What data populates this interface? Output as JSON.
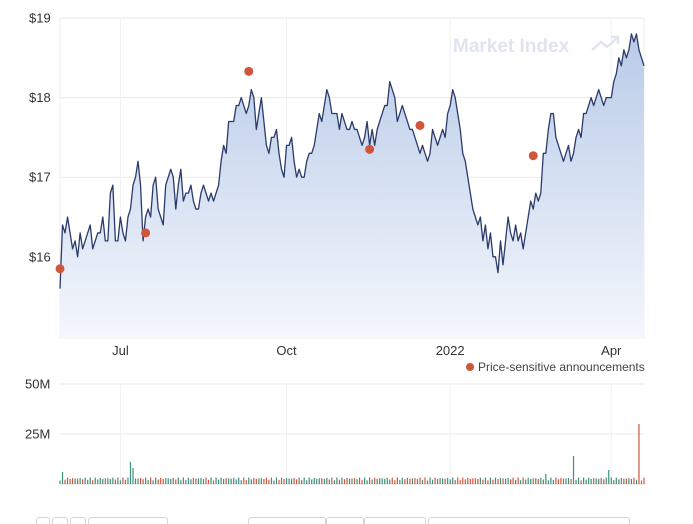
{
  "watermark": {
    "text": "Market Index",
    "icon": "trend-up-icon"
  },
  "legend": {
    "label": "Price-sensitive announcements",
    "marker_color": "#d0563b"
  },
  "colors": {
    "line": "#2b3a6b",
    "area_top": "#b9cbe8",
    "area_bottom": "#f4f7fc",
    "grid": "#e9e9e9",
    "volume_up": "#3d8f7d",
    "volume_down": "#d0563b"
  },
  "chart_data": [
    {
      "type": "area",
      "name": "price",
      "y_ticks": [
        16,
        17,
        18,
        19
      ],
      "y_tick_labels": [
        "$16",
        "$17",
        "$18",
        "$19"
      ],
      "ylim": [
        14.98,
        19.0
      ],
      "x_ticks": [
        "Jul",
        "Oct",
        "2022",
        "Apr"
      ],
      "x_tick_index": [
        24,
        90,
        155,
        219
      ],
      "grid": true,
      "values": [
        15.6,
        16.4,
        16.3,
        16.5,
        16.3,
        16.1,
        16.2,
        16.0,
        16.3,
        16.1,
        16.2,
        16.3,
        16.4,
        16.1,
        16.2,
        16.3,
        16.3,
        16.5,
        16.2,
        16.2,
        16.8,
        16.9,
        16.2,
        16.2,
        16.5,
        16.3,
        16.2,
        16.5,
        16.6,
        16.9,
        17.0,
        17.2,
        16.9,
        16.2,
        16.5,
        16.6,
        16.5,
        16.9,
        17.0,
        16.6,
        16.5,
        16.4,
        16.9,
        17.0,
        17.1,
        17.0,
        16.6,
        16.9,
        17.1,
        16.7,
        16.8,
        16.8,
        16.9,
        16.7,
        16.6,
        16.6,
        16.8,
        16.9,
        16.8,
        16.7,
        16.8,
        16.7,
        16.8,
        16.9,
        17.2,
        17.4,
        17.3,
        17.7,
        17.7,
        17.7,
        17.9,
        17.9,
        18.0,
        17.9,
        17.8,
        17.9,
        18.1,
        18.0,
        17.6,
        17.8,
        18.0,
        17.7,
        17.4,
        17.3,
        17.5,
        17.5,
        17.6,
        17.3,
        17.1,
        17.0,
        17.4,
        17.4,
        17.5,
        17.2,
        17.0,
        17.1,
        17.0,
        17.0,
        17.2,
        17.3,
        17.3,
        17.4,
        17.6,
        17.8,
        17.7,
        17.9,
        18.1,
        18.0,
        17.8,
        17.8,
        17.8,
        17.6,
        17.8,
        17.7,
        17.6,
        17.6,
        17.7,
        17.6,
        17.6,
        17.5,
        17.4,
        17.5,
        17.7,
        17.4,
        17.6,
        17.4,
        17.6,
        17.7,
        17.8,
        17.9,
        17.9,
        18.2,
        18.1,
        18.0,
        17.7,
        17.8,
        17.9,
        17.8,
        17.7,
        17.6,
        17.6,
        17.5,
        17.4,
        17.3,
        17.4,
        17.3,
        17.2,
        17.3,
        17.6,
        17.5,
        17.4,
        17.5,
        17.6,
        17.5,
        17.8,
        17.9,
        18.1,
        18.0,
        17.8,
        17.6,
        17.3,
        17.2,
        17.0,
        16.8,
        16.6,
        16.5,
        16.4,
        16.5,
        16.2,
        16.4,
        16.1,
        16.3,
        16.0,
        16.0,
        15.8,
        16.2,
        15.9,
        16.2,
        16.5,
        16.3,
        16.2,
        16.4,
        16.2,
        16.3,
        16.1,
        16.3,
        16.5,
        16.7,
        16.6,
        16.8,
        16.7,
        16.8,
        17.3,
        17.3,
        17.6,
        17.8,
        17.8,
        17.5,
        17.4,
        17.3,
        17.2,
        17.3,
        17.4,
        17.2,
        17.3,
        17.5,
        17.6,
        17.5,
        17.8,
        17.8,
        17.9,
        18.0,
        17.9,
        18.0,
        18.1,
        18.0,
        17.9,
        18.0,
        18.0,
        18.0,
        18.2,
        18.3,
        18.5,
        18.4,
        18.6,
        18.5,
        18.6,
        18.8,
        18.7,
        18.8,
        18.6,
        18.5,
        18.4
      ]
    },
    {
      "type": "bar",
      "name": "volume",
      "y_ticks": [
        25,
        50
      ],
      "y_tick_labels": [
        "25M",
        "50M"
      ],
      "ylim": [
        0,
        50
      ],
      "grid": true,
      "spikes": [
        {
          "index": 1,
          "value": 6
        },
        {
          "index": 28,
          "value": 11
        },
        {
          "index": 29,
          "value": 8
        },
        {
          "index": 193,
          "value": 5
        },
        {
          "index": 204,
          "value": 14
        },
        {
          "index": 218,
          "value": 7
        },
        {
          "index": 230,
          "value": 30
        }
      ],
      "baseline_value": 2.5
    }
  ],
  "announcements_price": [
    15.85,
    16.3,
    18.33,
    17.35,
    17.65,
    17.27
  ],
  "announcements_index": [
    0,
    34,
    75,
    123,
    143,
    188
  ]
}
